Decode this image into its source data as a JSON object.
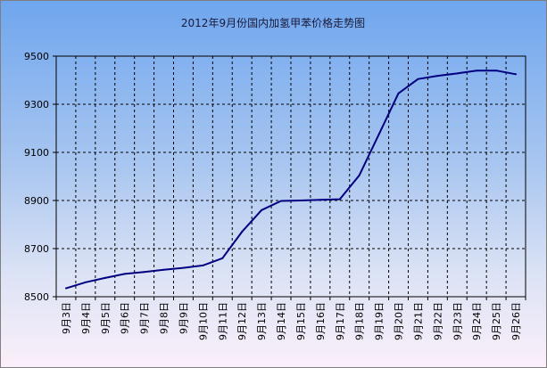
{
  "chart_data": {
    "type": "line",
    "title": "2012年9月份国内加氢甲苯价格走势图",
    "xlabel": "",
    "ylabel": "",
    "ylim": [
      8500,
      9500
    ],
    "yticks": [
      8500,
      8700,
      8900,
      9100,
      9300,
      9500
    ],
    "ytick_labels": [
      "8500",
      "8700",
      "8900",
      "9100",
      "9300",
      "9500"
    ],
    "grid": true,
    "legend": "none",
    "categories": [
      "9月3日",
      "9月4日",
      "9月5日",
      "9月6日",
      "9月7日",
      "9月8日",
      "9月9日",
      "9月10日",
      "9月11日",
      "9月12日",
      "9月13日",
      "9月14日",
      "9月15日",
      "9月16日",
      "9月17日",
      "9月18日",
      "9月19日",
      "9月20日",
      "9月21日",
      "9月22日",
      "9月23日",
      "9月24日",
      "9月25日",
      "9月26日"
    ],
    "series": [
      {
        "values": [
          8535,
          8560,
          8578,
          8595,
          8603,
          8612,
          8620,
          8630,
          8660,
          8770,
          8860,
          8898,
          8900,
          8903,
          8905,
          9005,
          9175,
          9345,
          9405,
          9418,
          9428,
          9440,
          9440,
          9425
        ],
        "color": "#000080"
      }
    ]
  }
}
